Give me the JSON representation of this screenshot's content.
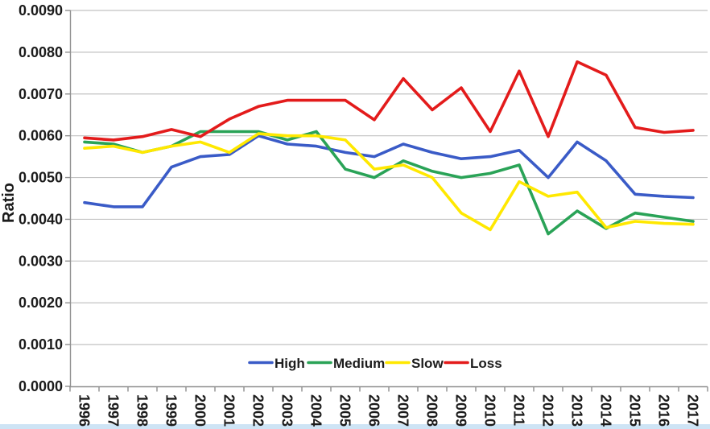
{
  "chart_data": {
    "type": "line",
    "title": "",
    "xlabel": "",
    "ylabel": "Ratio",
    "categories": [
      "1996",
      "1997",
      "1998",
      "1999",
      "2000",
      "2001",
      "2002",
      "2003",
      "2004",
      "2005",
      "2006",
      "2007",
      "2008",
      "2009",
      "2010",
      "2011",
      "2012",
      "2013",
      "2014",
      "2015",
      "2016",
      "2017"
    ],
    "series": [
      {
        "name": "High",
        "color": "#3a5bc7",
        "values": [
          0.0044,
          0.0043,
          0.0043,
          0.00525,
          0.0055,
          0.00555,
          0.006,
          0.0058,
          0.00575,
          0.0056,
          0.0055,
          0.0058,
          0.0056,
          0.00545,
          0.0055,
          0.00565,
          0.005,
          0.00585,
          0.0054,
          0.0046,
          0.00455,
          0.00452
        ]
      },
      {
        "name": "Medium",
        "color": "#2aa357",
        "values": [
          0.00585,
          0.0058,
          0.0056,
          0.00575,
          0.0061,
          0.0061,
          0.0061,
          0.0059,
          0.0061,
          0.0052,
          0.005,
          0.0054,
          0.00515,
          0.005,
          0.0051,
          0.0053,
          0.00365,
          0.0042,
          0.00378,
          0.00415,
          0.00405,
          0.00395
        ]
      },
      {
        "name": "Slow",
        "color": "#ffe800",
        "values": [
          0.0057,
          0.00575,
          0.0056,
          0.00575,
          0.00585,
          0.0056,
          0.00605,
          0.006,
          0.006,
          0.0059,
          0.0052,
          0.0053,
          0.005,
          0.00415,
          0.00375,
          0.0049,
          0.00455,
          0.00465,
          0.0038,
          0.00395,
          0.0039,
          0.00388
        ]
      },
      {
        "name": "Loss",
        "color": "#e31b1b",
        "values": [
          0.00595,
          0.0059,
          0.00598,
          0.00615,
          0.00598,
          0.0064,
          0.0067,
          0.00685,
          0.00685,
          0.00685,
          0.00638,
          0.00737,
          0.00662,
          0.00715,
          0.0061,
          0.00755,
          0.00598,
          0.00777,
          0.00745,
          0.0062,
          0.00608,
          0.00613
        ]
      }
    ],
    "ylim": [
      0,
      0.009
    ],
    "ytick_step": 0.001,
    "ytick_labels": [
      "0.0000",
      "0.0010",
      "0.0020",
      "0.0030",
      "0.0040",
      "0.0050",
      "0.0060",
      "0.0070",
      "0.0080",
      "0.0090"
    ],
    "grid": "horizontal",
    "legend_position": "bottom-center-inside",
    "legend_labels": [
      "High",
      "Medium",
      "Slow",
      "Loss"
    ]
  },
  "colors": {
    "background": "#ffffff",
    "gridline": "#c2c2c2",
    "axis": "#8f8f8f",
    "text": "#1c1c1c",
    "bottom_strip": "#cee4f5"
  }
}
